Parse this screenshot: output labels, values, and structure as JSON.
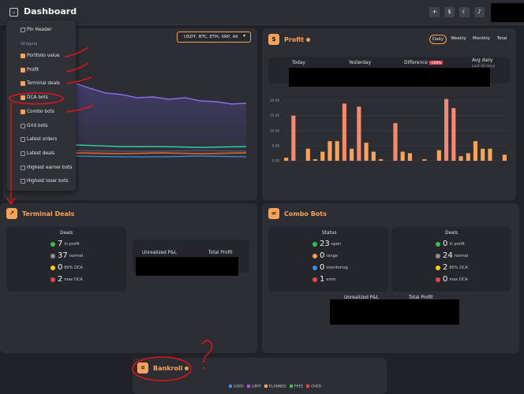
{
  "header": {
    "title": "Dashboard",
    "icons": [
      "add-widget-icon",
      "dollar-icon",
      "moon-icon",
      "bell-icon"
    ]
  },
  "dropdown": {
    "pin_header": "Pin Header",
    "section": "Widgets",
    "items": [
      {
        "label": "Portfolio value",
        "checked": true
      },
      {
        "label": "Profit",
        "checked": true
      },
      {
        "label": "Terminal deals",
        "checked": true
      },
      {
        "label": "DCA bots",
        "checked": true
      },
      {
        "label": "Combo bots",
        "checked": true
      },
      {
        "label": "Grid bots",
        "checked": false
      },
      {
        "label": "Latest orders",
        "checked": false
      },
      {
        "label": "Latest deals",
        "checked": false
      },
      {
        "label": "Highest earner bots",
        "checked": false
      },
      {
        "label": "Highest loser bots",
        "checked": false
      }
    ]
  },
  "portfolio": {
    "selector": "USDT, BTC, ETH, XRP, All"
  },
  "profit": {
    "title": "Profit",
    "tabs": [
      "Daily",
      "Weekly",
      "Monthly",
      "Total"
    ],
    "summary": {
      "today": "Today",
      "yesterday": "Yesterday",
      "difference": "Difference",
      "difference_badge": "-100%",
      "avg_daily": "Avg daily",
      "avg_daily_sub": "Last 30 days"
    },
    "chart_data": {
      "type": "bar",
      "y_ticks": [
        "20.00",
        "15.00",
        "10.00",
        "5.00",
        "0.00"
      ],
      "ylim": [
        0,
        22
      ],
      "values": [
        1,
        15,
        0,
        4,
        0.5,
        3,
        6.5,
        6.5,
        19,
        4,
        18,
        6,
        3,
        0.5,
        0,
        12.5,
        3,
        2.5,
        0,
        0.5,
        0,
        3.5,
        20.5,
        17.5,
        1.5,
        2.5,
        6.5,
        4,
        4,
        0,
        2
      ]
    }
  },
  "terminal": {
    "title": "Terminal Deals",
    "deals_title": "Deals",
    "rows": [
      {
        "value": "7",
        "label": "in profit",
        "color": "#2fc253"
      },
      {
        "value": "37",
        "label": "normal",
        "color": "#8a8f97"
      },
      {
        "value": "0",
        "label": "80% DCA",
        "color": "#f5d20a"
      },
      {
        "value": "2",
        "label": "max DCA",
        "color": "#e5484d"
      }
    ],
    "unrealized": "Unrealized P&L",
    "total_profit": "Total Profit"
  },
  "combo": {
    "title": "Combo Bots",
    "status_title": "Status",
    "status_rows": [
      {
        "value": "23",
        "label": "open",
        "color": "#2fc253"
      },
      {
        "value": "0",
        "label": "range",
        "color": "#f7a35c"
      },
      {
        "value": "0",
        "label": "monitoring",
        "color": "#3b8fe0"
      },
      {
        "value": "1",
        "label": "error",
        "color": "#e5484d"
      }
    ],
    "deals_title": "Deals",
    "deals_rows": [
      {
        "value": "0",
        "label": "in profit",
        "color": "#2fc253"
      },
      {
        "value": "24",
        "label": "normal",
        "color": "#8a8f97"
      },
      {
        "value": "2",
        "label": "80% DCA",
        "color": "#f5d20a"
      },
      {
        "value": "0",
        "label": "max DCA",
        "color": "#e5484d"
      }
    ],
    "unrealized": "Unrealized P&L",
    "total_profit": "Total Profit"
  },
  "bankroll": {
    "title": "Bankroll",
    "legend": [
      {
        "label": "USED",
        "color": "#3b8fe0"
      },
      {
        "label": "LIMIT",
        "color": "#a05be0"
      },
      {
        "label": "PLANNED",
        "color": "#f7a35c"
      },
      {
        "label": "FREE",
        "color": "#2fc253"
      },
      {
        "label": "OVER",
        "color": "#e5484d"
      }
    ]
  }
}
